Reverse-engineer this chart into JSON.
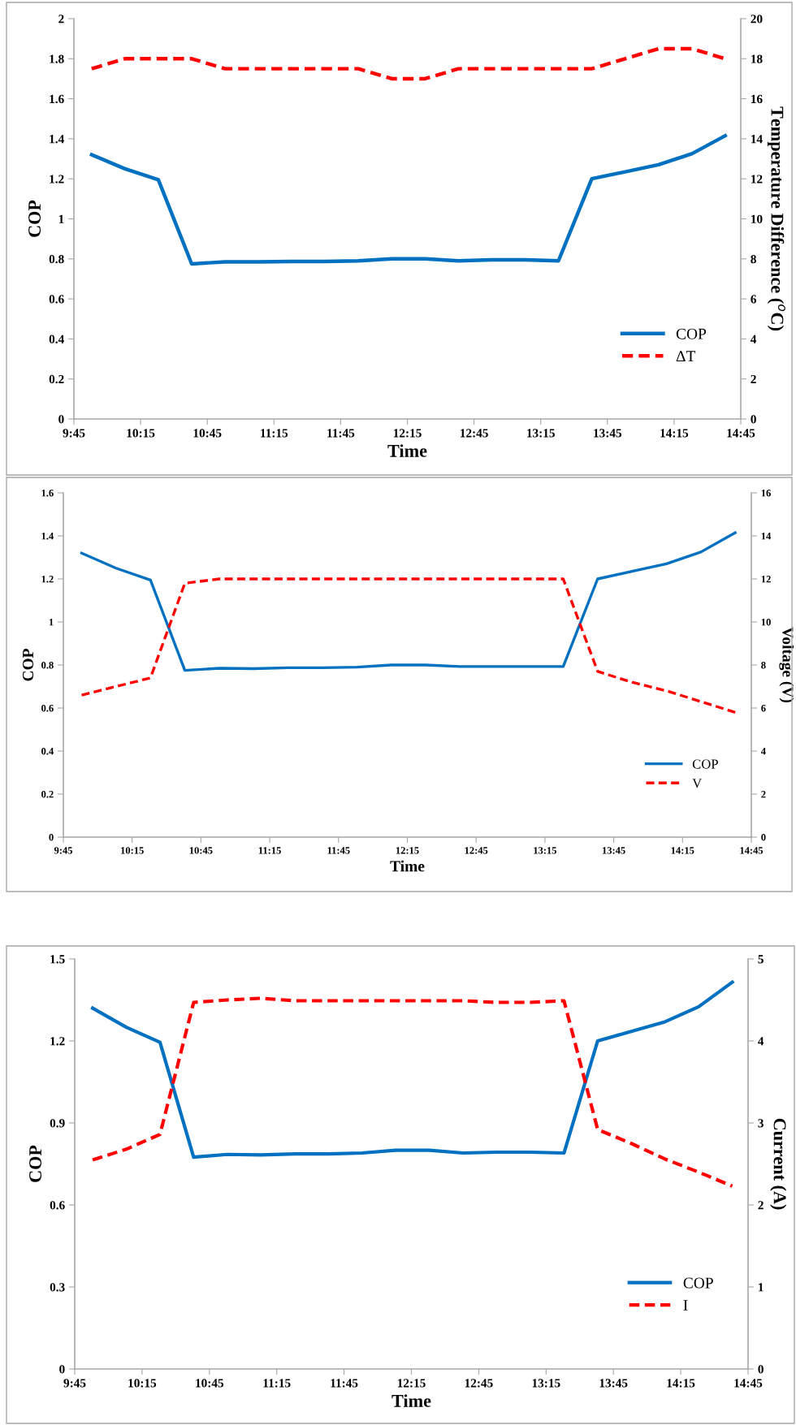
{
  "chart_data": [
    {
      "type": "line",
      "xlabel": "Time",
      "ylabel": "COP",
      "y2label": "Temperature Difference ($^{o}$C)",
      "x": [
        9.883,
        10.133,
        10.383,
        10.633,
        10.883,
        11.133,
        11.383,
        11.633,
        11.883,
        12.133,
        12.383,
        12.633,
        12.883,
        13.133,
        13.383,
        13.633,
        13.883,
        14.133,
        14.383,
        14.633
      ],
      "series": [
        {
          "name": "COP",
          "color": "#0070c0",
          "line_style": "solid",
          "values": [
            1.32,
            1.25,
            1.195,
            0.775,
            0.785,
            0.785,
            0.787,
            0.787,
            0.79,
            0.8,
            0.8,
            0.79,
            0.795,
            0.795,
            0.79,
            1.2,
            1.235,
            1.27,
            1.325,
            1.415
          ]
        },
        {
          "name": "ΔT",
          "color": "#ff0000",
          "line_style": "dashed",
          "axis": "y2",
          "values": [
            17.5,
            18,
            18,
            18,
            17.5,
            17.5,
            17.5,
            17.5,
            17.5,
            17,
            17,
            17.5,
            17.5,
            17.5,
            17.5,
            17.5,
            18,
            18.5,
            18.5,
            18
          ]
        }
      ],
      "xlim": [
        9.75,
        14.75
      ],
      "xticks": [
        {
          "value": 9.75,
          "label": "9:45"
        },
        {
          "value": 10.25,
          "label": "10:15"
        },
        {
          "value": 10.75,
          "label": "10:45"
        },
        {
          "value": 11.25,
          "label": "11:15"
        },
        {
          "value": 11.75,
          "label": "11:45"
        },
        {
          "value": 12.25,
          "label": "12:15"
        },
        {
          "value": 12.75,
          "label": "12:45"
        },
        {
          "value": 13.25,
          "label": "13:15"
        },
        {
          "value": 13.75,
          "label": "13:45"
        },
        {
          "value": 14.25,
          "label": "14:15"
        },
        {
          "value": 14.75,
          "label": "14:45"
        }
      ],
      "ylim": [
        0,
        2
      ],
      "yticks": [
        0,
        0.2,
        0.4,
        0.6,
        0.8,
        1,
        1.2,
        1.4,
        1.6,
        1.8,
        2
      ],
      "y2lim": [
        0,
        20
      ],
      "y2ticks": [
        0,
        2,
        4,
        6,
        8,
        10,
        12,
        14,
        16,
        18,
        20
      ],
      "grid": false,
      "legend": "bottom right",
      "marker": "none"
    },
    {
      "type": "line",
      "xlabel": "Time",
      "ylabel": "COP",
      "y2label": "Voltage (V)",
      "x": [
        9.883,
        10.133,
        10.383,
        10.633,
        10.883,
        11.133,
        11.383,
        11.633,
        11.883,
        12.133,
        12.383,
        12.633,
        12.883,
        13.133,
        13.383,
        13.633,
        13.883,
        14.133,
        14.383,
        14.633
      ],
      "series": [
        {
          "name": "COP",
          "color": "#0070c0",
          "line_style": "solid",
          "values": [
            1.32,
            1.25,
            1.195,
            0.775,
            0.785,
            0.783,
            0.787,
            0.787,
            0.79,
            0.8,
            0.8,
            0.793,
            0.793,
            0.793,
            0.793,
            1.2,
            1.235,
            1.27,
            1.325,
            1.415
          ]
        },
        {
          "name": "V",
          "color": "#ff0000",
          "line_style": "dashed",
          "axis": "y2",
          "values": [
            6.6,
            7.0,
            7.4,
            11.8,
            12,
            12,
            12,
            12,
            12,
            12,
            12,
            12,
            12,
            12,
            12,
            7.7,
            7.2,
            6.8,
            6.3,
            5.8
          ]
        }
      ],
      "xlim": [
        9.75,
        14.75
      ],
      "xticks": [
        {
          "value": 9.75,
          "label": "9:45"
        },
        {
          "value": 10.25,
          "label": "10:15"
        },
        {
          "value": 10.75,
          "label": "10:45"
        },
        {
          "value": 11.25,
          "label": "11:15"
        },
        {
          "value": 11.75,
          "label": "11:45"
        },
        {
          "value": 12.25,
          "label": "12:15"
        },
        {
          "value": 12.75,
          "label": "12:45"
        },
        {
          "value": 13.25,
          "label": "13:15"
        },
        {
          "value": 13.75,
          "label": "13:45"
        },
        {
          "value": 14.25,
          "label": "14:15"
        },
        {
          "value": 14.75,
          "label": "14:45"
        }
      ],
      "ylim": [
        0,
        1.6
      ],
      "yticks": [
        0,
        0.2,
        0.4,
        0.6,
        0.8,
        1,
        1.2,
        1.4,
        1.6
      ],
      "y2lim": [
        0,
        16
      ],
      "y2ticks": [
        0,
        2,
        4,
        6,
        8,
        10,
        12,
        14,
        16
      ],
      "grid": false,
      "legend": "bottom right",
      "marker": "none"
    },
    {
      "type": "line",
      "xlabel": "Time",
      "ylabel": "COP",
      "y2label": "Current (A)",
      "x": [
        9.883,
        10.133,
        10.383,
        10.633,
        10.883,
        11.133,
        11.383,
        11.633,
        11.883,
        12.133,
        12.383,
        12.633,
        12.883,
        13.133,
        13.383,
        13.633,
        13.883,
        14.133,
        14.383,
        14.633
      ],
      "series": [
        {
          "name": "COP",
          "color": "#0070c0",
          "line_style": "solid",
          "values": [
            1.32,
            1.25,
            1.195,
            0.775,
            0.785,
            0.783,
            0.787,
            0.787,
            0.79,
            0.8,
            0.8,
            0.79,
            0.793,
            0.793,
            0.79,
            1.2,
            1.235,
            1.27,
            1.325,
            1.415
          ]
        },
        {
          "name": "I",
          "color": "#ff0000",
          "line_style": "dashed",
          "axis": "y2",
          "values": [
            2.55,
            2.68,
            2.86,
            4.47,
            4.5,
            4.52,
            4.49,
            4.49,
            4.49,
            4.49,
            4.49,
            4.49,
            4.47,
            4.47,
            4.49,
            2.92,
            2.75,
            2.56,
            2.4,
            2.23
          ]
        }
      ],
      "xlim": [
        9.75,
        14.75
      ],
      "xticks": [
        {
          "value": 9.75,
          "label": "9:45"
        },
        {
          "value": 10.25,
          "label": "10:15"
        },
        {
          "value": 10.75,
          "label": "10:45"
        },
        {
          "value": 11.25,
          "label": "11:15"
        },
        {
          "value": 11.75,
          "label": "11:45"
        },
        {
          "value": 12.25,
          "label": "12:15"
        },
        {
          "value": 12.75,
          "label": "12:45"
        },
        {
          "value": 13.25,
          "label": "13:15"
        },
        {
          "value": 13.75,
          "label": "13:45"
        },
        {
          "value": 14.25,
          "label": "14:15"
        },
        {
          "value": 14.75,
          "label": "14:45"
        }
      ],
      "ylim": [
        0,
        1.5
      ],
      "yticks": [
        0,
        0.3,
        0.6,
        0.9,
        1.2,
        1.5
      ],
      "y2lim": [
        0,
        5
      ],
      "y2ticks": [
        0,
        1,
        2,
        3,
        4,
        5
      ],
      "grid": false,
      "legend": "bottom right",
      "marker": "none"
    }
  ]
}
